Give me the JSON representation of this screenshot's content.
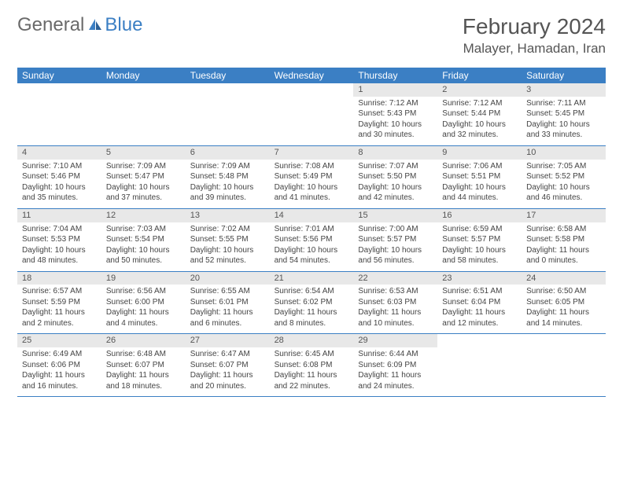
{
  "logo": {
    "text1": "General",
    "text2": "Blue"
  },
  "title": "February 2024",
  "location": "Malayer, Hamadan, Iran",
  "colors": {
    "header_bg": "#3b7fc4",
    "header_text": "#ffffff",
    "daynum_bg": "#e8e8e8",
    "rule": "#3b7fc4",
    "body_text": "#444444"
  },
  "day_labels": [
    "Sunday",
    "Monday",
    "Tuesday",
    "Wednesday",
    "Thursday",
    "Friday",
    "Saturday"
  ],
  "weeks": [
    [
      null,
      null,
      null,
      null,
      {
        "n": "1",
        "sr": "7:12 AM",
        "ss": "5:43 PM",
        "dl": "10 hours and 30 minutes."
      },
      {
        "n": "2",
        "sr": "7:12 AM",
        "ss": "5:44 PM",
        "dl": "10 hours and 32 minutes."
      },
      {
        "n": "3",
        "sr": "7:11 AM",
        "ss": "5:45 PM",
        "dl": "10 hours and 33 minutes."
      }
    ],
    [
      {
        "n": "4",
        "sr": "7:10 AM",
        "ss": "5:46 PM",
        "dl": "10 hours and 35 minutes."
      },
      {
        "n": "5",
        "sr": "7:09 AM",
        "ss": "5:47 PM",
        "dl": "10 hours and 37 minutes."
      },
      {
        "n": "6",
        "sr": "7:09 AM",
        "ss": "5:48 PM",
        "dl": "10 hours and 39 minutes."
      },
      {
        "n": "7",
        "sr": "7:08 AM",
        "ss": "5:49 PM",
        "dl": "10 hours and 41 minutes."
      },
      {
        "n": "8",
        "sr": "7:07 AM",
        "ss": "5:50 PM",
        "dl": "10 hours and 42 minutes."
      },
      {
        "n": "9",
        "sr": "7:06 AM",
        "ss": "5:51 PM",
        "dl": "10 hours and 44 minutes."
      },
      {
        "n": "10",
        "sr": "7:05 AM",
        "ss": "5:52 PM",
        "dl": "10 hours and 46 minutes."
      }
    ],
    [
      {
        "n": "11",
        "sr": "7:04 AM",
        "ss": "5:53 PM",
        "dl": "10 hours and 48 minutes."
      },
      {
        "n": "12",
        "sr": "7:03 AM",
        "ss": "5:54 PM",
        "dl": "10 hours and 50 minutes."
      },
      {
        "n": "13",
        "sr": "7:02 AM",
        "ss": "5:55 PM",
        "dl": "10 hours and 52 minutes."
      },
      {
        "n": "14",
        "sr": "7:01 AM",
        "ss": "5:56 PM",
        "dl": "10 hours and 54 minutes."
      },
      {
        "n": "15",
        "sr": "7:00 AM",
        "ss": "5:57 PM",
        "dl": "10 hours and 56 minutes."
      },
      {
        "n": "16",
        "sr": "6:59 AM",
        "ss": "5:57 PM",
        "dl": "10 hours and 58 minutes."
      },
      {
        "n": "17",
        "sr": "6:58 AM",
        "ss": "5:58 PM",
        "dl": "11 hours and 0 minutes."
      }
    ],
    [
      {
        "n": "18",
        "sr": "6:57 AM",
        "ss": "5:59 PM",
        "dl": "11 hours and 2 minutes."
      },
      {
        "n": "19",
        "sr": "6:56 AM",
        "ss": "6:00 PM",
        "dl": "11 hours and 4 minutes."
      },
      {
        "n": "20",
        "sr": "6:55 AM",
        "ss": "6:01 PM",
        "dl": "11 hours and 6 minutes."
      },
      {
        "n": "21",
        "sr": "6:54 AM",
        "ss": "6:02 PM",
        "dl": "11 hours and 8 minutes."
      },
      {
        "n": "22",
        "sr": "6:53 AM",
        "ss": "6:03 PM",
        "dl": "11 hours and 10 minutes."
      },
      {
        "n": "23",
        "sr": "6:51 AM",
        "ss": "6:04 PM",
        "dl": "11 hours and 12 minutes."
      },
      {
        "n": "24",
        "sr": "6:50 AM",
        "ss": "6:05 PM",
        "dl": "11 hours and 14 minutes."
      }
    ],
    [
      {
        "n": "25",
        "sr": "6:49 AM",
        "ss": "6:06 PM",
        "dl": "11 hours and 16 minutes."
      },
      {
        "n": "26",
        "sr": "6:48 AM",
        "ss": "6:07 PM",
        "dl": "11 hours and 18 minutes."
      },
      {
        "n": "27",
        "sr": "6:47 AM",
        "ss": "6:07 PM",
        "dl": "11 hours and 20 minutes."
      },
      {
        "n": "28",
        "sr": "6:45 AM",
        "ss": "6:08 PM",
        "dl": "11 hours and 22 minutes."
      },
      {
        "n": "29",
        "sr": "6:44 AM",
        "ss": "6:09 PM",
        "dl": "11 hours and 24 minutes."
      },
      null,
      null
    ]
  ],
  "labels": {
    "sunrise": "Sunrise:",
    "sunset": "Sunset:",
    "daylight": "Daylight:"
  }
}
